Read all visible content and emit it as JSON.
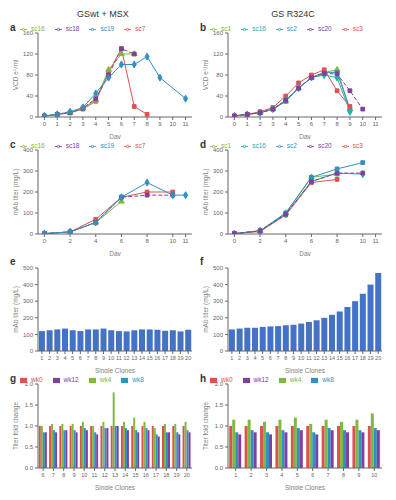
{
  "chart_data": [
    {
      "type": "line",
      "title": "a",
      "subtitle": "GSwt + MSX",
      "x": [
        0,
        1,
        2,
        3,
        4,
        5,
        6,
        7,
        8,
        9,
        10,
        11
      ],
      "series": [
        {
          "name": "sc7",
          "color": "#e05050",
          "marker": "square",
          "values": [
            2,
            5,
            8,
            15,
            30,
            85,
            130,
            20,
            5,
            null,
            null,
            null
          ]
        },
        {
          "name": "sc16",
          "color": "#80b840",
          "marker": "triangle",
          "values": [
            2,
            5,
            8,
            17,
            32,
            90,
            120,
            120,
            null,
            null,
            null,
            null
          ]
        },
        {
          "name": "sc18",
          "color": "#8040a0",
          "marker": "square",
          "line_style": "dashed",
          "values": [
            2,
            5,
            8,
            17,
            35,
            80,
            130,
            120,
            null,
            null,
            null,
            null
          ]
        },
        {
          "name": "sc19",
          "color": "#3090c0",
          "marker": "diamond",
          "values": [
            2,
            5,
            10,
            18,
            45,
            75,
            100,
            100,
            115,
            75,
            null,
            35
          ]
        }
      ],
      "xlim": [
        -0.5,
        11.5
      ],
      "xticks": [
        0,
        1,
        2,
        3,
        4,
        5,
        6,
        7,
        8,
        9,
        10,
        11
      ],
      "ylim": [
        0,
        160
      ],
      "yticks": [
        0,
        40,
        80,
        120,
        160
      ],
      "x_label": "Day",
      "y_label": "VCD e⁵/ml",
      "legend": "upper left",
      "grid": false
    },
    {
      "type": "line",
      "title": "b",
      "subtitle": "GS R324C",
      "x": [
        0,
        1,
        2,
        3,
        4,
        5,
        6,
        7,
        8,
        9,
        10,
        11
      ],
      "series": [
        {
          "name": "sc1",
          "color": "#80b840",
          "marker": "triangle",
          "values": [
            2,
            5,
            8,
            15,
            30,
            55,
            75,
            85,
            90,
            15,
            null,
            null
          ]
        },
        {
          "name": "sc2",
          "color": "#3090c0",
          "marker": "square",
          "values": [
            2,
            5,
            8,
            15,
            30,
            55,
            75,
            85,
            85,
            15,
            null,
            null
          ]
        },
        {
          "name": "sc3",
          "color": "#e05050",
          "marker": "square",
          "values": [
            2,
            5,
            10,
            18,
            40,
            65,
            80,
            90,
            50,
            20,
            null,
            null
          ]
        },
        {
          "name": "sc16",
          "color": "#20b0b0",
          "marker": "diamond",
          "values": [
            2,
            5,
            8,
            15,
            32,
            55,
            75,
            80,
            75,
            10,
            null,
            null
          ]
        },
        {
          "name": "sc20",
          "color": "#8040a0",
          "marker": "square",
          "line_style": "dashed",
          "values": [
            2,
            5,
            8,
            15,
            32,
            55,
            75,
            83,
            82,
            50,
            15,
            null
          ]
        }
      ],
      "xlim": [
        -0.5,
        11.5
      ],
      "xticks": [
        0,
        1,
        2,
        3,
        4,
        5,
        6,
        7,
        8,
        9,
        10,
        11
      ],
      "ylim": [
        0,
        160
      ],
      "yticks": [
        0,
        40,
        80,
        120,
        160
      ],
      "x_label": "Day",
      "y_label": "VCD e⁵/ml",
      "legend": "upper left",
      "grid": false
    },
    {
      "type": "line",
      "title": "c",
      "x": [
        0,
        2,
        4,
        6,
        8,
        10,
        11
      ],
      "series": [
        {
          "name": "sc7",
          "color": "#e05050",
          "marker": "square",
          "values": [
            2,
            10,
            70,
            175,
            200,
            200,
            null
          ]
        },
        {
          "name": "sc16",
          "color": "#80b840",
          "marker": "triangle",
          "values": [
            2,
            10,
            55,
            155,
            null,
            null,
            null
          ]
        },
        {
          "name": "sc18",
          "color": "#8040a0",
          "marker": "square",
          "line_style": "dashed",
          "values": [
            2,
            10,
            55,
            175,
            185,
            185,
            null
          ]
        },
        {
          "name": "sc19",
          "color": "#3090c0",
          "marker": "diamond",
          "values": [
            2,
            10,
            55,
            175,
            245,
            185,
            185
          ]
        }
      ],
      "xlim": [
        -0.5,
        11.5
      ],
      "xticks": [
        0,
        2,
        4,
        6,
        8,
        10,
        11
      ],
      "ylim": [
        0,
        400
      ],
      "yticks": [
        0,
        100,
        200,
        300,
        400
      ],
      "x_label": "Day",
      "y_label": "mAb titer (mg/L)",
      "legend": "upper left",
      "grid": false
    },
    {
      "type": "line",
      "title": "d",
      "x": [
        0,
        2,
        4,
        6,
        8,
        10,
        11
      ],
      "series": [
        {
          "name": "sc1",
          "color": "#80b840",
          "marker": "triangle",
          "values": [
            2,
            15,
            100,
            270,
            285,
            null,
            null
          ]
        },
        {
          "name": "sc2",
          "color": "#3090c0",
          "marker": "square",
          "values": [
            2,
            15,
            100,
            270,
            310,
            340,
            null
          ]
        },
        {
          "name": "sc3",
          "color": "#e05050",
          "marker": "square",
          "values": [
            2,
            12,
            90,
            245,
            260,
            null,
            null
          ]
        },
        {
          "name": "sc16",
          "color": "#20b0b0",
          "marker": "diamond",
          "values": [
            2,
            15,
            95,
            250,
            290,
            285,
            null
          ]
        },
        {
          "name": "sc20",
          "color": "#8040a0",
          "marker": "square",
          "line_style": "dashed",
          "values": [
            2,
            15,
            95,
            250,
            290,
            290,
            null
          ]
        }
      ],
      "xlim": [
        -0.5,
        11.5
      ],
      "xticks": [
        0,
        2,
        4,
        6,
        8,
        10,
        11
      ],
      "ylim": [
        0,
        400
      ],
      "yticks": [
        0,
        100,
        200,
        300,
        400
      ],
      "x_label": "Day",
      "y_label": "mAb titer (mg/L)",
      "legend": "upper left",
      "grid": false
    },
    {
      "type": "bar",
      "title": "e",
      "categories": [
        "1",
        "2",
        "3",
        "4",
        "5",
        "6",
        "7",
        "8",
        "9",
        "10",
        "11",
        "12",
        "13",
        "14",
        "15",
        "16",
        "17",
        "18",
        "19",
        "20"
      ],
      "values": [
        120,
        125,
        130,
        135,
        125,
        120,
        130,
        130,
        135,
        125,
        120,
        118,
        125,
        130,
        130,
        128,
        122,
        125,
        118,
        128
      ],
      "color": "#4472c4",
      "ylim": [
        0,
        500
      ],
      "yticks": [
        0,
        100,
        200,
        300,
        400,
        500
      ],
      "x_label": "Single Clones",
      "y_label": "mAb titer (mg/L)",
      "grid": false
    },
    {
      "type": "bar",
      "title": "f",
      "categories": [
        "1",
        "2",
        "3",
        "4",
        "5",
        "6",
        "7",
        "8",
        "9",
        "10",
        "11",
        "12",
        "13",
        "14",
        "15",
        "16",
        "17",
        "18",
        "19",
        "20"
      ],
      "values": [
        130,
        135,
        140,
        140,
        145,
        148,
        150,
        155,
        158,
        165,
        175,
        185,
        200,
        218,
        238,
        265,
        300,
        345,
        400,
        470
      ],
      "color": "#4472c4",
      "ylim": [
        0,
        500
      ],
      "yticks": [
        0,
        100,
        200,
        300,
        400,
        500
      ],
      "x_label": "Single Clones",
      "y_label": "mAb titer (mg/L)",
      "grid": false
    },
    {
      "type": "bar",
      "title": "g",
      "categories": [
        "6",
        "7",
        "8",
        "9",
        "10",
        "11",
        "12",
        "13",
        "14",
        "15",
        "16",
        "17",
        "18",
        "19",
        "20"
      ],
      "series": [
        {
          "name": "wk0",
          "color": "#e05050",
          "values": [
            1.0,
            1.0,
            1.0,
            1.0,
            1.0,
            1.0,
            1.0,
            1.0,
            1.0,
            1.0,
            1.0,
            1.0,
            1.0,
            1.0,
            1.0
          ]
        },
        {
          "name": "wk4",
          "color": "#80b840",
          "values": [
            1.0,
            1.05,
            1.05,
            1.05,
            1.1,
            1.0,
            1.1,
            1.8,
            1.1,
            1.2,
            1.1,
            0.95,
            1.05,
            1.05,
            1.1
          ]
        },
        {
          "name": "wk8",
          "color": "#3090c0",
          "values": [
            0.85,
            0.9,
            0.9,
            0.9,
            0.95,
            0.85,
            0.95,
            1.0,
            0.95,
            0.9,
            0.95,
            0.8,
            0.85,
            0.85,
            0.9
          ]
        },
        {
          "name": "wk12",
          "color": "#8040a0",
          "values": [
            0.85,
            0.85,
            0.9,
            0.85,
            0.9,
            0.8,
            0.95,
            1.0,
            0.9,
            0.85,
            0.9,
            0.75,
            0.85,
            0.8,
            0.85
          ]
        }
      ],
      "ylim": [
        0,
        2.0
      ],
      "yticks": [
        {
          "value": 0,
          "label": "0.0"
        },
        0.5,
        {
          "value": 1.0,
          "label": "1.0"
        },
        1.5,
        {
          "value": 2.0,
          "label": "2.0"
        }
      ],
      "x_label": "Single Clones",
      "y_label": "Titer fold change",
      "legend": "upper left",
      "grid": false
    },
    {
      "type": "bar",
      "title": "h",
      "categories": [
        "1",
        "2",
        "3",
        "4",
        "5",
        "6",
        "7",
        "8",
        "9",
        "10"
      ],
      "series": [
        {
          "name": "wk0",
          "color": "#e05050",
          "values": [
            1.0,
            1.0,
            1.0,
            1.0,
            1.0,
            1.0,
            1.0,
            1.0,
            1.0,
            1.0
          ]
        },
        {
          "name": "wk4",
          "color": "#80b840",
          "values": [
            1.15,
            1.15,
            1.1,
            1.15,
            1.2,
            1.05,
            1.15,
            1.1,
            1.15,
            1.3
          ]
        },
        {
          "name": "wk8",
          "color": "#3090c0",
          "values": [
            0.85,
            0.9,
            0.85,
            0.9,
            0.95,
            0.85,
            0.95,
            0.9,
            0.9,
            0.95
          ]
        },
        {
          "name": "wk12",
          "color": "#8040a0",
          "values": [
            0.8,
            0.85,
            0.8,
            0.85,
            0.9,
            0.8,
            0.9,
            0.85,
            0.85,
            0.9
          ]
        }
      ],
      "ylim": [
        0,
        2.0
      ],
      "yticks": [
        {
          "value": 0,
          "label": "0.0"
        },
        0.5,
        {
          "value": 1.0,
          "label": "1.0"
        },
        1.5,
        {
          "value": 2.0,
          "label": "2.0"
        }
      ],
      "x_label": "Single Clones",
      "y_label": "Titer fold change",
      "legend": "upper left",
      "grid": false
    }
  ]
}
